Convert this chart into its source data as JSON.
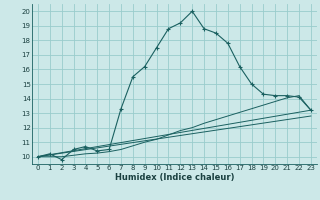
{
  "title": "",
  "xlabel": "Humidex (Indice chaleur)",
  "bg_color": "#cce8e8",
  "grid_color": "#99cccc",
  "line_color": "#1a6060",
  "xlim": [
    -0.5,
    23.5
  ],
  "ylim": [
    9.5,
    20.5
  ],
  "yticks": [
    10,
    11,
    12,
    13,
    14,
    15,
    16,
    17,
    18,
    19,
    20
  ],
  "xticks": [
    0,
    1,
    2,
    3,
    4,
    5,
    6,
    7,
    8,
    9,
    10,
    11,
    12,
    13,
    14,
    15,
    16,
    17,
    18,
    19,
    20,
    21,
    22,
    23
  ],
  "main_curve_x": [
    0,
    1,
    2,
    3,
    4,
    5,
    6,
    7,
    8,
    9,
    10,
    11,
    12,
    13,
    14,
    15,
    16,
    17,
    18,
    19,
    20,
    21,
    22,
    23
  ],
  "main_curve_y": [
    10.0,
    10.2,
    9.8,
    10.5,
    10.7,
    10.4,
    10.5,
    13.3,
    15.5,
    16.2,
    17.5,
    18.8,
    19.2,
    20.0,
    18.8,
    18.5,
    17.8,
    16.2,
    15.0,
    14.3,
    14.2,
    14.2,
    14.1,
    13.2
  ],
  "line2_x": [
    0,
    1,
    2,
    3,
    4,
    5,
    6,
    7,
    8,
    9,
    10,
    11,
    12,
    13,
    14,
    15,
    16,
    17,
    18,
    19,
    20,
    21,
    22,
    23
  ],
  "line2_y": [
    10.0,
    10.0,
    10.0,
    10.1,
    10.2,
    10.25,
    10.35,
    10.5,
    10.75,
    11.0,
    11.2,
    11.5,
    11.8,
    12.0,
    12.3,
    12.55,
    12.8,
    13.05,
    13.3,
    13.55,
    13.8,
    14.05,
    14.2,
    13.2
  ],
  "line3_x": [
    0,
    23
  ],
  "line3_y": [
    10.0,
    13.2
  ],
  "line4_x": [
    0,
    23
  ],
  "line4_y": [
    10.0,
    13.2
  ],
  "tick_fontsize": 5.0,
  "xlabel_fontsize": 6.0
}
